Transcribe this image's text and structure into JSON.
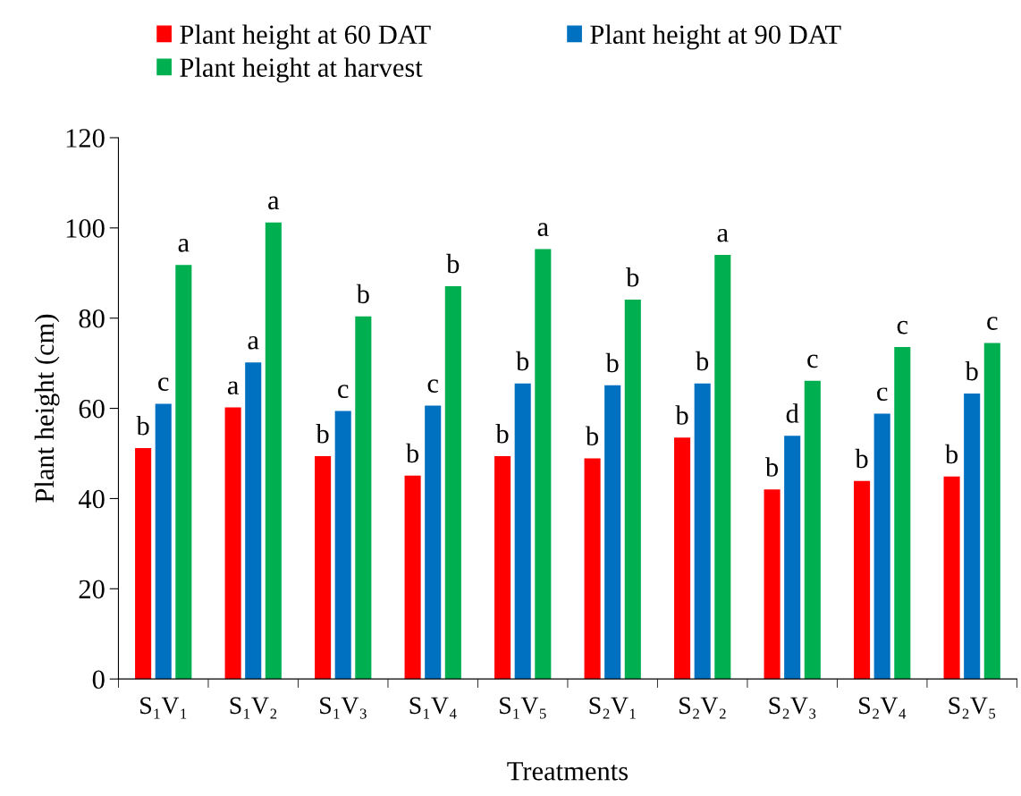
{
  "chart_data": {
    "type": "bar",
    "xlabel": "Treatments",
    "ylabel": "Plant height (cm)",
    "categories": [
      "S₁V₁",
      "S₁V₂",
      "S₁V₃",
      "S₁V₄",
      "S₁V₅",
      "S₂V₁",
      "S₂V₂",
      "S₂V₃",
      "S₂V₄",
      "S₂V₅"
    ],
    "series": [
      {
        "name": "Plant height at 60 DAT",
        "color": "#ff0000",
        "values": [
          51.2,
          60.2,
          49.4,
          45.1,
          49.4,
          48.9,
          53.5,
          42.0,
          43.9,
          44.9
        ],
        "value_labels": [
          "b",
          "a",
          "b",
          "b",
          "b",
          "b",
          "b",
          "b",
          "b",
          "b"
        ]
      },
      {
        "name": "Plant height at 90 DAT",
        "color": "#0070c0",
        "values": [
          61.0,
          70.2,
          59.4,
          60.6,
          65.5,
          65.1,
          65.5,
          53.9,
          58.8,
          63.3
        ],
        "value_labels": [
          "c",
          "a",
          "c",
          "c",
          "b",
          "b",
          "b",
          "d",
          "c",
          "b"
        ]
      },
      {
        "name": "Plant height at harvest",
        "color": "#00b050",
        "values": [
          91.8,
          101.2,
          80.4,
          87.1,
          95.3,
          84.1,
          94.0,
          66.1,
          73.6,
          74.5
        ],
        "value_labels": [
          "a",
          "a",
          "b",
          "b",
          "a",
          "b",
          "a",
          "c",
          "c",
          "c"
        ]
      }
    ],
    "ylim": [
      0,
      120
    ],
    "yticks": [
      0,
      20,
      40,
      60,
      80,
      100,
      120
    ],
    "grid": false,
    "legend": "top"
  }
}
